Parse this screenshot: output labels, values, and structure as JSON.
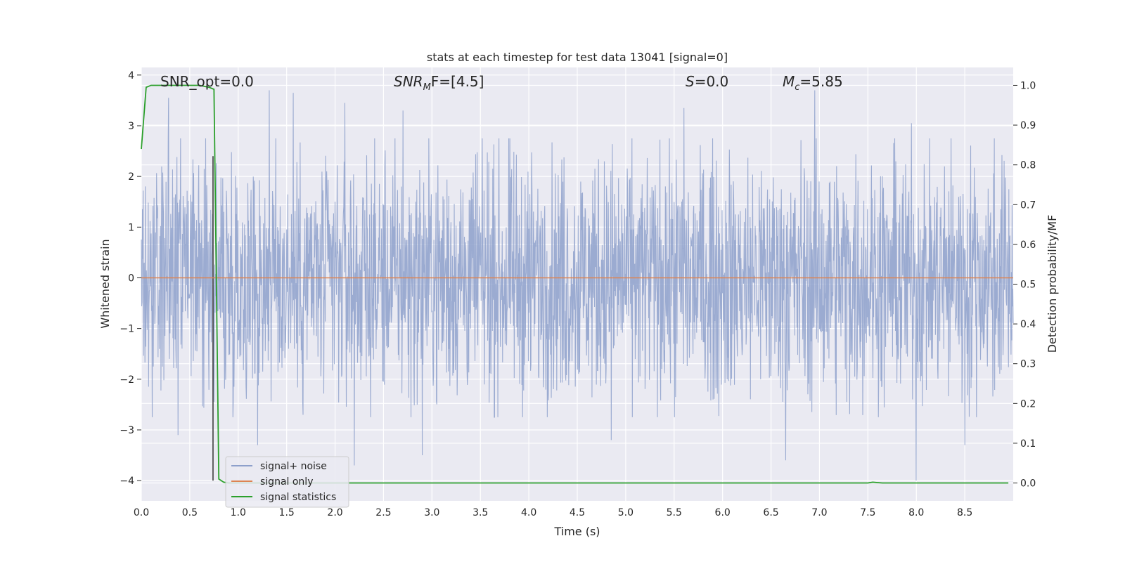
{
  "chart_data": {
    "type": "line",
    "title": "stats at each timestep for test data 13041 [signal=0]",
    "xlabel": "Time (s)",
    "ylabel": "Whitened strain",
    "y2label": "Detection probability/MF",
    "xlim": [
      0.0,
      9.0
    ],
    "ylim": [
      -4.4,
      4.15
    ],
    "y2lim": [
      -0.045,
      1.045
    ],
    "x_ticks": [
      "0.0",
      "0.5",
      "1.0",
      "1.5",
      "2.0",
      "2.5",
      "3.0",
      "3.5",
      "4.0",
      "4.5",
      "5.0",
      "5.5",
      "6.0",
      "6.5",
      "7.0",
      "7.5",
      "8.0",
      "8.5"
    ],
    "y_ticks": [
      "4",
      "3",
      "2",
      "1",
      "0",
      "−1",
      "−2",
      "−3",
      "−4"
    ],
    "y2_ticks": [
      "1.0",
      "0.9",
      "0.8",
      "0.7",
      "0.6",
      "0.5",
      "0.4",
      "0.3",
      "0.2",
      "0.1",
      "0.0"
    ],
    "grid": true,
    "legend_position": "lower-left",
    "annotations": {
      "snr_opt": "SNR_opt=0.0",
      "snr_mf_main": "SNR",
      "snr_mf_sub": "M",
      "snr_mf_rest": "F=[4.5]",
      "s_main": "S",
      "s_rest": "=0.0",
      "mc_main": "M",
      "mc_sub": "c",
      "mc_rest": "=5.85"
    },
    "series": [
      {
        "name": "signal+ noise",
        "color": "#8da0cb",
        "axis": "left",
        "note_envelope_x": [
          0.0,
          9.0
        ],
        "peaks": [
          [
            0.28,
            3.55
          ],
          [
            1.32,
            3.7
          ],
          [
            1.57,
            3.65
          ],
          [
            2.1,
            3.45
          ],
          [
            2.7,
            3.3
          ],
          [
            5.6,
            3.35
          ],
          [
            6.95,
            3.7
          ],
          [
            7.95,
            3.05
          ]
        ],
        "troughs": [
          [
            0.38,
            -3.1
          ],
          [
            1.2,
            -3.3
          ],
          [
            2.2,
            -3.7
          ],
          [
            2.9,
            -3.5
          ],
          [
            4.85,
            -3.2
          ],
          [
            6.65,
            -3.6
          ],
          [
            8.0,
            -4.0
          ],
          [
            8.5,
            -3.3
          ]
        ],
        "typical_amplitude": 2.2
      },
      {
        "name": "signal only",
        "color": "#dd8452",
        "axis": "left",
        "x": [
          0.0,
          9.0
        ],
        "values": [
          0.0,
          0.0
        ]
      },
      {
        "name": "signal statistics",
        "color": "#2ca02c",
        "axis": "right",
        "x": [
          0.0,
          0.05,
          0.1,
          0.2,
          0.3,
          0.4,
          0.5,
          0.6,
          0.7,
          0.75,
          0.8,
          0.85,
          0.9,
          1.0,
          2.0,
          3.0,
          4.0,
          5.0,
          6.0,
          7.0,
          7.5,
          7.55,
          7.6,
          7.65,
          8.0,
          8.5,
          8.95
        ],
        "values": [
          0.84,
          0.995,
          1.0,
          1.0,
          1.0,
          1.0,
          1.0,
          1.0,
          0.995,
          0.99,
          0.01,
          0.002,
          0.0,
          0.0,
          0.0,
          0.0,
          0.0,
          0.0,
          0.0,
          0.0,
          0.0,
          0.002,
          0.001,
          0.0,
          0.0,
          0.0,
          0.0
        ]
      }
    ],
    "marker_line": {
      "x": 0.74,
      "color": "#333333"
    }
  }
}
